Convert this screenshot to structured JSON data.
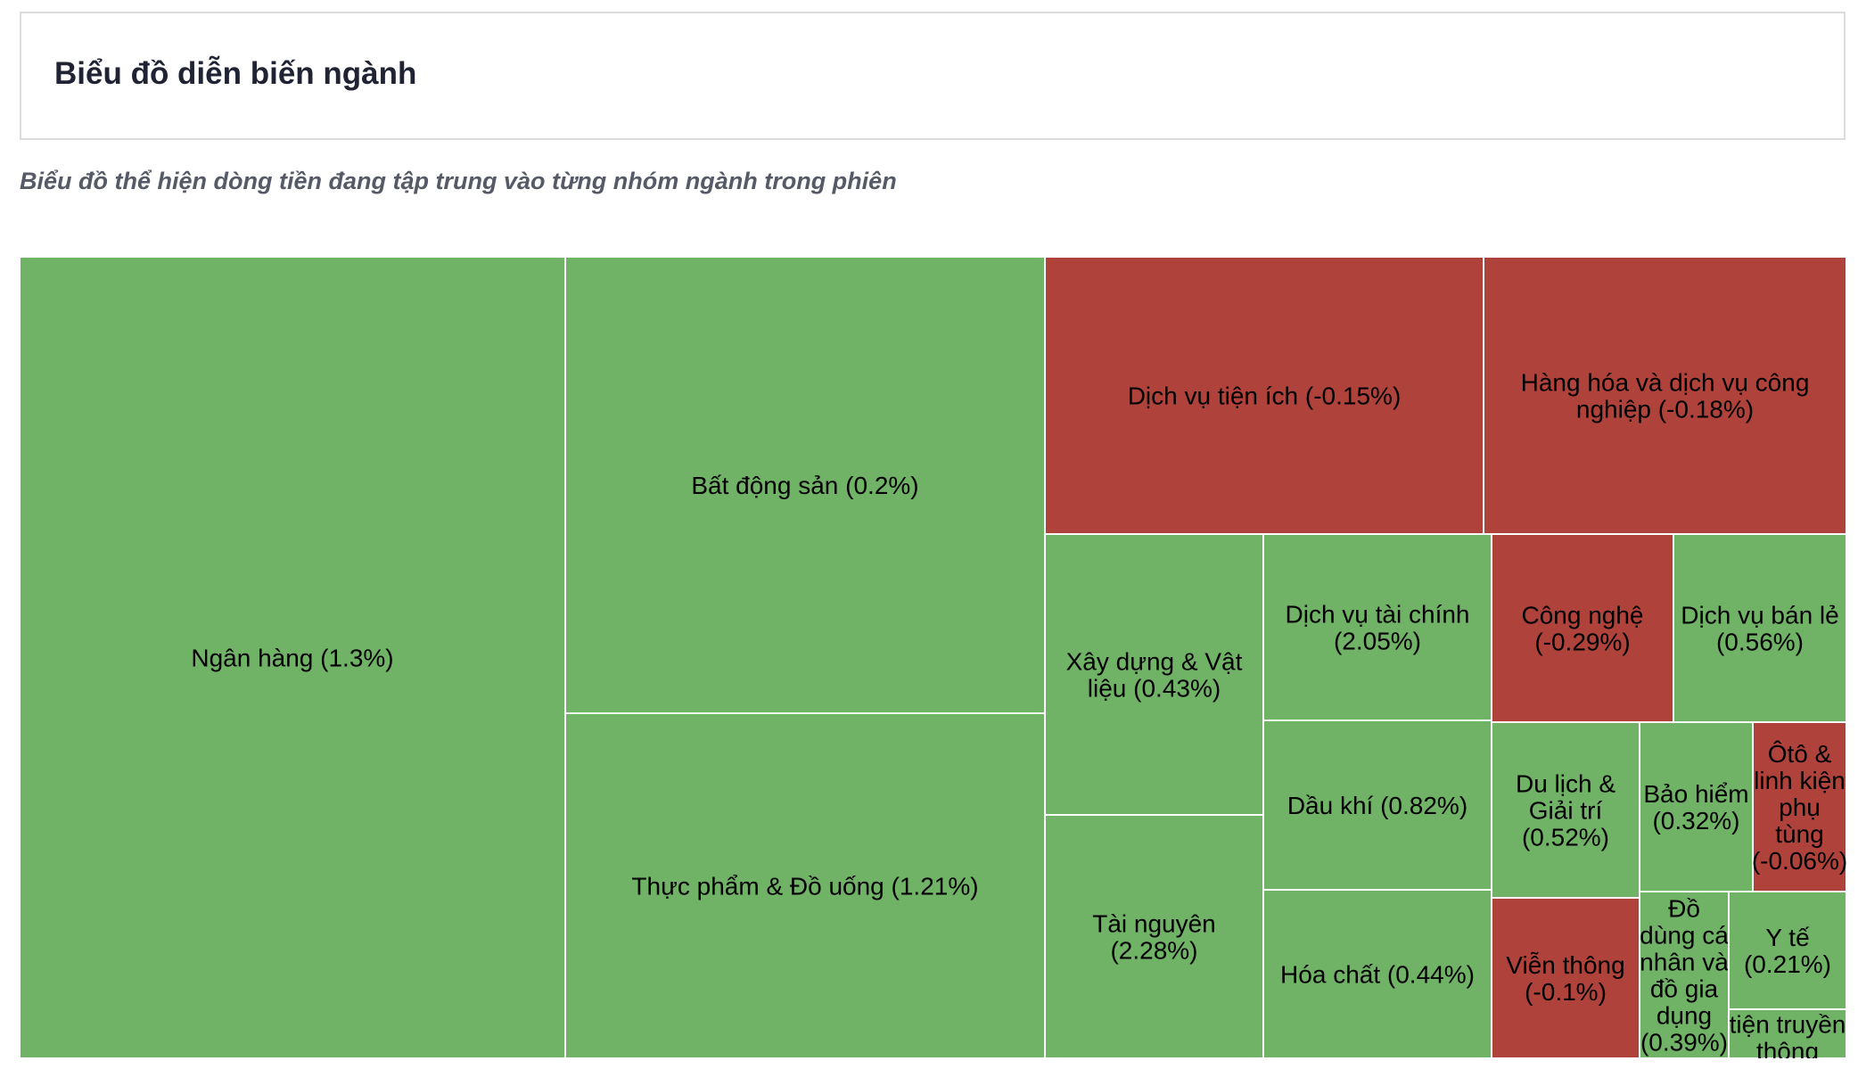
{
  "header": {
    "title": "Biểu đồ diễn biến ngành"
  },
  "subtitle": "Biểu đồ thể hiện dòng tiền đang tập trung vào từng nhóm ngành trong phiên",
  "colors": {
    "positive": "#70b266",
    "negative": "#af433b",
    "cell_border": "#ffffff"
  },
  "chart_data": {
    "type": "treemap",
    "title": "",
    "value_meaning": "percent change in session",
    "sectors": [
      {
        "id": "ngan-hang",
        "name": "Ngân hàng",
        "change": 1.3,
        "label_lines": [
          "Ngân hàng (1.3%)"
        ]
      },
      {
        "id": "bat-dong-san",
        "name": "Bất động sản",
        "change": 0.2,
        "label_lines": [
          "Bất động sản (0.2%)"
        ]
      },
      {
        "id": "thuc-pham-do-uong",
        "name": "Thực phẩm & Đồ uống",
        "change": 1.21,
        "label_lines": [
          "Thực phẩm & Đồ uống (1.21%)"
        ]
      },
      {
        "id": "dich-vu-tien-ich",
        "name": "Dịch vụ tiện ích",
        "change": -0.15,
        "label_lines": [
          "Dịch vụ tiện ích (-0.15%)"
        ]
      },
      {
        "id": "hang-hoa-dich-vu-cong-nghiep",
        "name": "Hàng hóa và dịch vụ công nghiệp",
        "change": -0.18,
        "label_lines": [
          "Hàng hóa và dịch vụ công",
          "nghiệp (-0.18%)"
        ]
      },
      {
        "id": "xay-dung-vat-lieu",
        "name": "Xây dựng & Vật liệu",
        "change": 0.43,
        "label_lines": [
          "Xây dựng & Vật",
          "liệu (0.43%)"
        ]
      },
      {
        "id": "tai-nguyen",
        "name": "Tài nguyên",
        "change": 2.28,
        "label_lines": [
          "Tài nguyên",
          "(2.28%)"
        ]
      },
      {
        "id": "dich-vu-tai-chinh",
        "name": "Dịch vụ tài chính",
        "change": 2.05,
        "label_lines": [
          "Dịch vụ tài chính",
          "(2.05%)"
        ]
      },
      {
        "id": "dau-khi",
        "name": "Dầu khí",
        "change": 0.82,
        "label_lines": [
          "Dầu khí (0.82%)"
        ]
      },
      {
        "id": "hoa-chat",
        "name": "Hóa chất",
        "change": 0.44,
        "label_lines": [
          "Hóa chất (0.44%)"
        ]
      },
      {
        "id": "cong-nghe",
        "name": "Công nghệ",
        "change": -0.29,
        "label_lines": [
          "Công nghệ",
          "(-0.29%)"
        ]
      },
      {
        "id": "dich-vu-ban-le",
        "name": "Dịch vụ bán lẻ",
        "change": 0.56,
        "label_lines": [
          "Dịch vụ bán lẻ",
          "(0.56%)"
        ]
      },
      {
        "id": "du-lich-giai-tri",
        "name": "Du lịch & Giải trí",
        "change": 0.52,
        "label_lines": [
          "Du lịch &",
          "Giải trí",
          "(0.52%)"
        ]
      },
      {
        "id": "bao-hiem",
        "name": "Bảo hiểm",
        "change": 0.32,
        "label_lines": [
          "Bảo hiểm",
          "(0.32%)"
        ]
      },
      {
        "id": "oto-linh-kien",
        "name": "Ôtô & linh kiện phụ tùng",
        "change": -0.06,
        "label_lines": [
          "Ôtô &",
          "linh kiện",
          "phụ",
          "tùng",
          "(-0.06%)"
        ]
      },
      {
        "id": "vien-thong",
        "name": "Viễn thông",
        "change": -0.1,
        "label_lines": [
          "Viễn thông",
          "(-0.1%)"
        ]
      },
      {
        "id": "do-dung-ca-nhan",
        "name": "Đồ dùng cá nhân và đồ gia dụng",
        "change": 0.39,
        "label_lines": [
          "Đồ",
          "dùng cá",
          "nhân và",
          "đồ gia",
          "dụng",
          "(0.39%)"
        ]
      },
      {
        "id": "y-te",
        "name": "Y tế",
        "change": 0.21,
        "label_lines": [
          "Y tế",
          "(0.21%)"
        ]
      },
      {
        "id": "truyen-thong",
        "name": "tiện truyền thông",
        "change": null,
        "label_lines": [
          "tiện truyền",
          "thông"
        ]
      }
    ]
  }
}
